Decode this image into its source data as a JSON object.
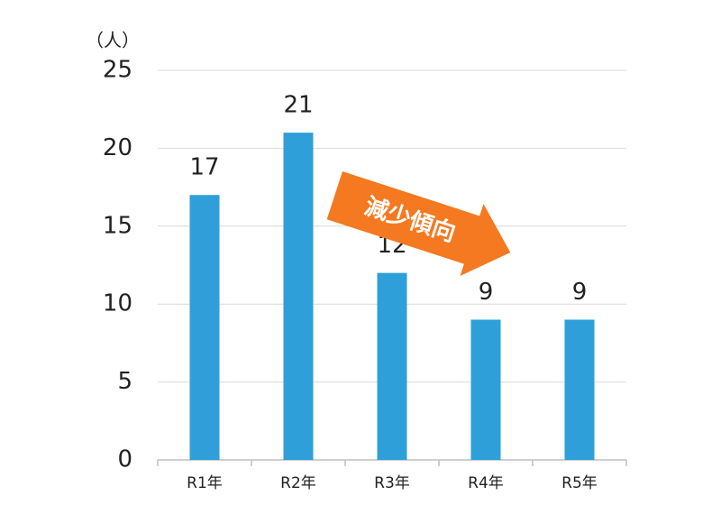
{
  "chart_data": {
    "type": "bar",
    "y_label": "（人）",
    "annotation": "減少傾向",
    "categories": [
      "R1年",
      "R2年",
      "R3年",
      "R4年",
      "R5年"
    ],
    "values": [
      17,
      21,
      12,
      9,
      9
    ],
    "color": "#2e9fd8",
    "annotation_color": "#f47920",
    "ylim": [
      0,
      25
    ],
    "yticks": [
      0,
      5,
      10,
      15,
      20,
      25
    ],
    "grid": true
  }
}
